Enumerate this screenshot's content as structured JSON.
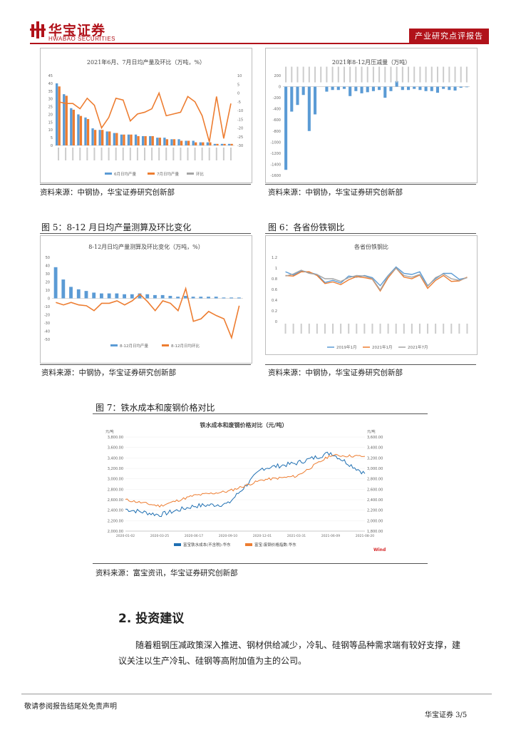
{
  "header": {
    "brand_cn": "华宝证券",
    "brand_en": "HWABAO SECURITIES",
    "section_tab": "产业研究点评报告"
  },
  "figures": {
    "fig3": {
      "chart_title": "2021年6月、7月日均产量及环比（万吨，%）",
      "legend": [
        "6月日均产量",
        "7月日均产量",
        "环比"
      ],
      "source": "资料来源：中钢协，华宝证券研究创新部"
    },
    "fig4": {
      "chart_title": "2021年8-12月压减量（万吨）",
      "source": "资料来源：中钢协，华宝证券研究创新部"
    },
    "fig5": {
      "label": "图 5：8-12 月日均产量测算及环比变化",
      "chart_title": "8-12月日均产量测算及环比变化（万吨，%）",
      "legend": [
        "8-12月日均产量",
        "8-12月日均环比"
      ],
      "source": "资料来源：中钢协，华宝证券研究创新部"
    },
    "fig6": {
      "label": "图 6：各省份铁钢比",
      "chart_title": "各省份铁钢比",
      "legend": [
        "2019年1月",
        "2021年1月",
        "2021年7月"
      ],
      "source": "资料来源：中钢协，华宝证券研究创新部"
    },
    "fig7": {
      "label": "图 7：铁水成本和废钢价格对比",
      "chart_title": "铁水成本和废钢价格对比（元/吨）",
      "unit_left": "元/吨",
      "unit_right": "元/吨",
      "legend": [
        "富宝铁水成本(不含税):华东",
        "富宝:废钢价格指数:华东"
      ],
      "watermark": "Wind",
      "source": "资料来源：富宝资讯，华宝证券研究创新部"
    }
  },
  "chart_data": [
    {
      "type": "bar",
      "name_ref": "fig3",
      "series": [
        {
          "name": "6月日均产量",
          "values": [
            40,
            33,
            24,
            20,
            18,
            11,
            10,
            9,
            8,
            7,
            7,
            7,
            6,
            6,
            5,
            5,
            4,
            4,
            3,
            3,
            2,
            2,
            1,
            1,
            1
          ]
        },
        {
          "name": "7月日均产量",
          "values": [
            38,
            32,
            23,
            19,
            17,
            10,
            10,
            9,
            8,
            7,
            7,
            6,
            6,
            6,
            5,
            4,
            4,
            3,
            3,
            2,
            2,
            2,
            1,
            1,
            1
          ]
        },
        {
          "name": "环比",
          "values": [
            -5,
            -6,
            -6,
            -9,
            -3,
            -7,
            -20,
            -14,
            -3,
            -4,
            -16,
            -12,
            -11,
            -9,
            0,
            -13,
            -12,
            -11,
            -2,
            -5,
            -13,
            -28,
            -2,
            -26,
            -6
          ]
        }
      ],
      "ylim_left": [
        0,
        45
      ],
      "yticks_left": [
        0,
        5,
        10,
        15,
        20,
        25,
        30,
        35,
        40,
        45
      ],
      "ylim_right": [
        -30,
        10
      ],
      "yticks_right": [
        10,
        5,
        0,
        -5,
        -10,
        -15,
        -20,
        -25,
        -30
      ]
    },
    {
      "type": "bar",
      "name_ref": "fig4",
      "values": [
        -1500,
        -450,
        -330,
        -150,
        -800,
        -500,
        0,
        -90,
        -60,
        -60,
        -40,
        -170,
        -80,
        -120,
        -100,
        -80,
        -60,
        -200,
        -80,
        100,
        -60,
        -60,
        -40,
        -60,
        -80,
        -80,
        -110,
        -40,
        -60,
        -70,
        -20,
        -10
      ],
      "ylim": [
        -1600,
        200
      ],
      "yticks": [
        200,
        0,
        -200,
        -400,
        -600,
        -800,
        -1000,
        -1200,
        -1400,
        -1600
      ]
    },
    {
      "type": "bar",
      "name_ref": "fig5",
      "series": [
        {
          "name": "8-12月日均产量",
          "values": [
            38,
            23,
            14,
            11,
            9,
            7,
            6,
            6,
            6,
            5,
            5,
            6,
            5,
            4,
            4,
            3,
            2,
            3,
            2,
            2,
            2,
            2,
            1,
            1,
            1
          ]
        },
        {
          "name": "8-12月日均环比",
          "values": [
            -5,
            -8,
            -5,
            -8,
            -9,
            -15,
            -6,
            -6,
            -3,
            -8,
            -3,
            5,
            -4,
            -15,
            -3,
            -6,
            -15,
            12,
            -28,
            -25,
            -16,
            -21,
            -25,
            -48,
            -9
          ]
        }
      ],
      "ylim": [
        -50,
        50
      ],
      "yticks": [
        50,
        40,
        30,
        20,
        10,
        0,
        -10,
        -20,
        -30,
        -40,
        -50
      ]
    },
    {
      "type": "line",
      "name_ref": "fig6",
      "series": [
        {
          "name": "2019年1月",
          "values": [
            0.93,
            0.87,
            0.95,
            0.92,
            0.88,
            0.73,
            0.77,
            0.72,
            0.85,
            0.83,
            0.86,
            0.82,
            0.67,
            0.86,
            1.02,
            0.9,
            0.88,
            0.93,
            0.67,
            0.8,
            0.9,
            0.9,
            0.79,
            0.82
          ]
        },
        {
          "name": "2021年1月",
          "values": [
            0.86,
            0.85,
            0.93,
            0.93,
            0.86,
            0.71,
            0.74,
            0.69,
            0.78,
            0.84,
            0.82,
            0.79,
            0.57,
            0.82,
            1.0,
            0.83,
            0.8,
            0.87,
            0.62,
            0.77,
            0.86,
            0.75,
            0.76,
            0.83
          ]
        },
        {
          "name": "2021年7月",
          "values": [
            0.85,
            0.89,
            0.96,
            0.9,
            0.88,
            0.8,
            0.8,
            0.75,
            0.82,
            0.86,
            0.85,
            0.8,
            0.59,
            0.85,
            1.0,
            0.86,
            0.83,
            0.88,
            0.66,
            0.82,
            0.89,
            0.8,
            0.77,
            0.82
          ]
        }
      ],
      "ylim": [
        0,
        1.2
      ],
      "yticks": [
        1.2,
        1,
        0.8,
        0.6,
        0.4,
        0.2,
        0
      ]
    },
    {
      "type": "line",
      "name_ref": "fig7",
      "x": [
        "2020-01-02",
        "2020-03-25",
        "2020-06-17",
        "2020-09-10",
        "2020-12-01",
        "2021-03-31",
        "2021-06-09",
        "2021-08-20"
      ],
      "series": [
        {
          "name": "富宝铁水成本(不含税):华东",
          "axis": "left",
          "values": [
            2420,
            2310,
            2480,
            2520,
            3200,
            3300,
            3500,
            3100
          ]
        },
        {
          "name": "富宝:废钢价格指数:华东",
          "axis": "right",
          "values": [
            2400,
            2280,
            2480,
            2560,
            2780,
            2850,
            3250,
            3230
          ]
        }
      ],
      "ylim_left": [
        2000,
        3800
      ],
      "yticks_left": [
        "3,800.00",
        "3,600.00",
        "3,400.00",
        "3,200.00",
        "3,000.00",
        "2,800.00",
        "2,600.00",
        "2,400.00",
        "2,200.00",
        "2,000.00"
      ],
      "ylim_right": [
        1800,
        3600
      ],
      "yticks_right": [
        "3,600.00",
        "3,400.00",
        "3,200.00",
        "3,000.00",
        "2,800.00",
        "2,600.00",
        "2,400.00",
        "2,200.00",
        "2,000.00",
        "1,800.00"
      ]
    }
  ],
  "section": {
    "title": "2. 投资建议",
    "paragraph_l1": "随着粗钢压减政策深入推进、钢材供给减少，冷轧、硅钢等品种需求端有较好支撑，建",
    "paragraph_l2": "议关注以生产冷轧、硅钢等高附加值为主的公司。"
  },
  "footer": {
    "disclaimer": "敬请参阅报告结尾处免责声明",
    "page": "华宝证券   3/5"
  },
  "colors": {
    "brand_red": "#b1121a",
    "bar_blue": "#5b9bd5",
    "line_orange": "#ed7d31",
    "line_gray": "#a5a5a5",
    "wind_red": "#d62728"
  }
}
